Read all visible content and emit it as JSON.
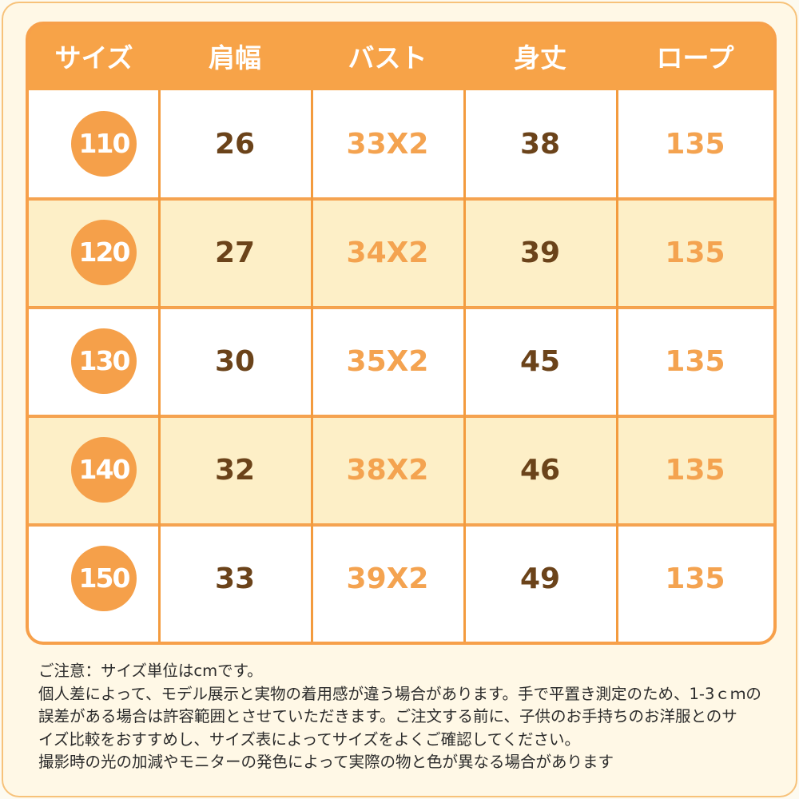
{
  "table": {
    "headers": [
      "サイズ",
      "肩幅",
      "バスト",
      "身丈",
      "ロープ"
    ],
    "rows": [
      {
        "size": "110",
        "shoulder": "26",
        "bust": "33X2",
        "length": "38",
        "rope": "135"
      },
      {
        "size": "120",
        "shoulder": "27",
        "bust": "34X2",
        "length": "39",
        "rope": "135"
      },
      {
        "size": "130",
        "shoulder": "30",
        "bust": "35X2",
        "length": "45",
        "rope": "135"
      },
      {
        "size": "140",
        "shoulder": "32",
        "bust": "38X2",
        "length": "46",
        "rope": "135"
      },
      {
        "size": "150",
        "shoulder": "33",
        "bust": "39X2",
        "length": "49",
        "rope": "135"
      }
    ]
  },
  "notes": {
    "lines": [
      "ご注意：サイズ単位はcmです。",
      "個人差によって、モデル展示と実物の着用感が違う場合があります。手で平置き測定のため、1-3ｃｍの",
      "誤差がある場合は許容範囲とさせていただきます。ご注文する前に、子供のお手持ちのお洋服とのサ",
      "イズ比較をおすすめし、サイズ表によってサイズをよくご確認してください。",
      "撮影時の光の加減やモニターの発色によって実際の物と色が異なる場合があります"
    ]
  },
  "colors": {
    "accent_orange": "#f7a348",
    "value_brown": "#6b431a",
    "value_orange": "#f4a350",
    "alt_row": "#fdefc7"
  }
}
